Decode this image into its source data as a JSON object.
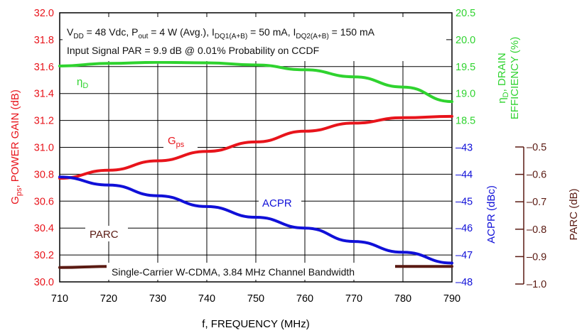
{
  "chart_data": {
    "type": "line",
    "x_label": "f, FREQUENCY (MHz)",
    "x_range": [
      710,
      790
    ],
    "x_ticks": [
      "710",
      "720",
      "730",
      "740",
      "750",
      "760",
      "770",
      "780",
      "790"
    ],
    "left_axis": {
      "label_main": "G",
      "label_sub": "ps",
      "label_rest": ", POWER GAIN (dB)",
      "range": [
        30.0,
        32.0
      ],
      "ticks": [
        "30.0",
        "30.2",
        "30.4",
        "30.6",
        "30.8",
        "31.0",
        "31.2",
        "31.4",
        "31.6",
        "31.8",
        "32.0"
      ],
      "color": "#e8141b"
    },
    "right_top_axis": {
      "label_line1_sym": "η",
      "label_line1_sub": "D",
      "label_line1_rest": ", DRAIN",
      "label_line2": "EFFICIENCY (%)",
      "range": [
        18.0,
        20.5
      ],
      "ticks": [
        "18.5",
        "19.0",
        "19.5",
        "20.0",
        "20.5"
      ],
      "color": "#2fd32f"
    },
    "right_bottom_axis": {
      "label": "ACPR (dBc)",
      "range": [
        -48,
        -43
      ],
      "ticks": [
        "-43",
        "-44",
        "-45",
        "-46",
        "-47",
        "-48"
      ],
      "color": "#1010d8"
    },
    "parc_axis": {
      "label": "PARC (dB)",
      "range": [
        -1.0,
        -0.5
      ],
      "ticks": [
        "-0.5",
        "-0.6",
        "-0.7",
        "-0.8",
        "-0.9",
        "-1.0"
      ],
      "color": "#5a1a12"
    },
    "conditions_line1": {
      "a": "V",
      "a_sub": "DD",
      "b": " = 48 Vdc, P",
      "b_sub": "out",
      "c": " = 4 W (Avg.), I",
      "c_sub": "DQ1(A+B)",
      "d": " = 50 mA, I",
      "d_sub": "DQ2(A+B)",
      "e": " = 150 mA"
    },
    "conditions_line2": "Input Signal PAR = 9.9 dB @ 0.01% Probability on CCDF",
    "footer_note": "Single-Carrier W-CDMA, 3.84 MHz Channel Bandwidth",
    "series": [
      {
        "name": "G",
        "name_sub": "ps",
        "axis": "left",
        "color": "#e8141b",
        "x": [
          710,
          720,
          730,
          740,
          750,
          760,
          770,
          780,
          790
        ],
        "values": [
          30.77,
          30.83,
          30.9,
          30.97,
          31.04,
          31.12,
          31.18,
          31.22,
          31.23
        ]
      },
      {
        "name": "η",
        "name_sub": "D",
        "axis": "right_top",
        "color": "#2fd32f",
        "x": [
          710,
          720,
          730,
          740,
          750,
          760,
          770,
          780,
          790
        ],
        "values": [
          19.51,
          19.56,
          19.58,
          19.57,
          19.53,
          19.44,
          19.31,
          19.12,
          18.85
        ]
      },
      {
        "name": "ACPR",
        "axis": "right_bottom",
        "color": "#1010d8",
        "x": [
          710,
          720,
          730,
          740,
          750,
          760,
          770,
          780,
          790
        ],
        "values": [
          -44.1,
          -44.4,
          -44.8,
          -45.2,
          -45.6,
          -46.0,
          -46.5,
          -46.9,
          -47.3
        ]
      },
      {
        "name": "PARC",
        "axis": "parc",
        "color": "#5a1a12",
        "x": [
          710,
          720,
          730,
          740,
          750,
          760,
          770,
          780,
          790
        ],
        "values": [
          -0.94,
          -0.936,
          -0.934,
          -0.933,
          -0.933,
          -0.934,
          -0.935,
          -0.936,
          -0.936
        ]
      }
    ]
  }
}
